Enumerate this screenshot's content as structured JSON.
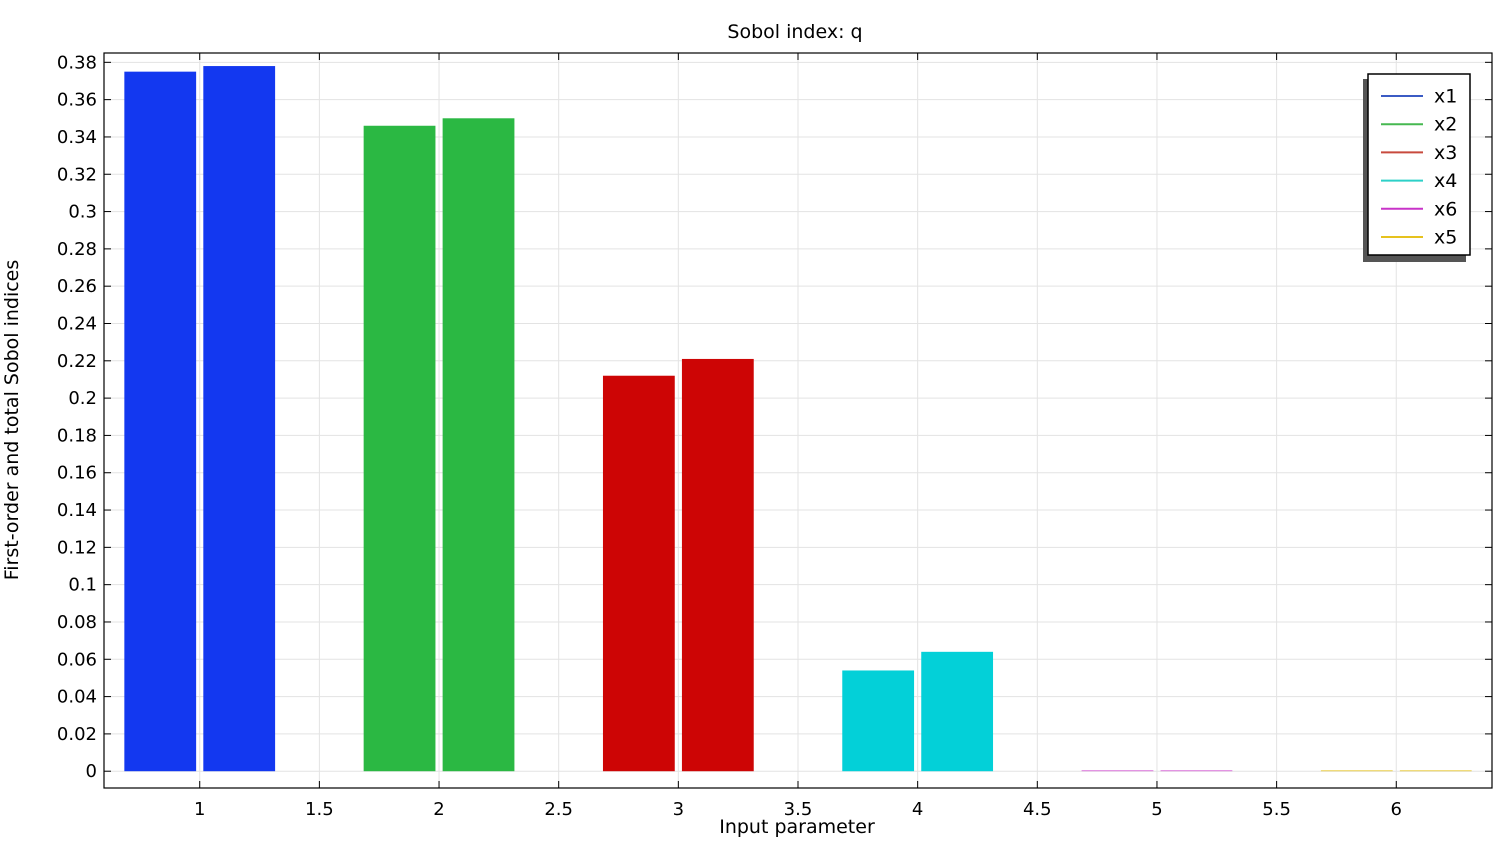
{
  "chart_data": {
    "type": "bar",
    "title": "Sobol index: q",
    "xlabel": "Input parameter",
    "ylabel": "First-order and total Sobol indices",
    "xlim": [
      0.6,
      6.4
    ],
    "ylim": [
      -0.009,
      0.385
    ],
    "x_ticks": [
      1,
      1.5,
      2,
      2.5,
      3,
      3.5,
      4,
      4.5,
      5,
      5.5,
      6
    ],
    "y_ticks": [
      0,
      0.02,
      0.04,
      0.06,
      0.08,
      0.1,
      0.12,
      0.14,
      0.16,
      0.18,
      0.2,
      0.22,
      0.24,
      0.26,
      0.28,
      0.3,
      0.32,
      0.34,
      0.36,
      0.38
    ],
    "grid": true,
    "legend_position": "top-right",
    "series": [
      {
        "name": "x1",
        "color": "#1338f0",
        "legend_color": "#3b5bc4",
        "x": 1,
        "first_order": 0.375,
        "total": 0.378
      },
      {
        "name": "x2",
        "color": "#2bb843",
        "legend_color": "#46b850",
        "x": 2,
        "first_order": 0.346,
        "total": 0.35
      },
      {
        "name": "x3",
        "color": "#cd0505",
        "legend_color": "#c84a3e",
        "x": 3,
        "first_order": 0.212,
        "total": 0.221
      },
      {
        "name": "x4",
        "color": "#03d0d8",
        "legend_color": "#2dd0c8",
        "x": 4,
        "first_order": 0.054,
        "total": 0.064
      },
      {
        "name": "x6",
        "color": "#d86bd8",
        "legend_color": "#c833c8",
        "x": 5,
        "first_order": 0.0005,
        "total": 0.0005
      },
      {
        "name": "x5",
        "color": "#e6c21e",
        "legend_color": "#e6c21e",
        "x": 6,
        "first_order": 0.0,
        "total": 0.0
      }
    ]
  }
}
